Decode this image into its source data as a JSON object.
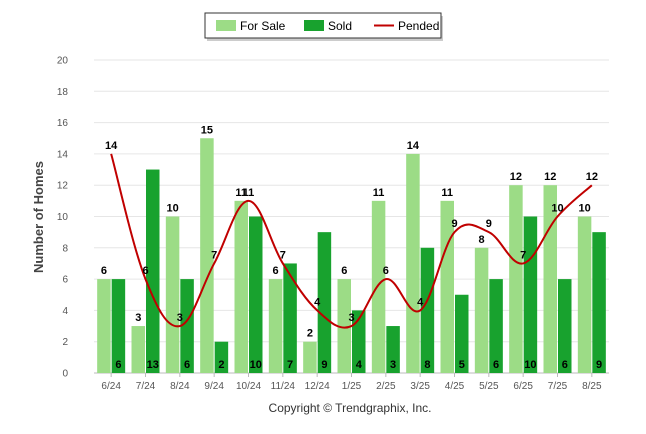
{
  "chart_data": {
    "type": "bar",
    "categories": [
      "6/24",
      "7/24",
      "8/24",
      "9/24",
      "10/24",
      "11/24",
      "12/24",
      "1/25",
      "2/25",
      "3/25",
      "4/25",
      "5/25",
      "6/25",
      "7/25",
      "8/25"
    ],
    "series": [
      {
        "name": "For Sale",
        "type": "bar",
        "color": "#9cdc86",
        "values": [
          6,
          3,
          10,
          15,
          11,
          6,
          2,
          6,
          11,
          14,
          11,
          8,
          12,
          12,
          10
        ]
      },
      {
        "name": "Sold",
        "type": "bar",
        "color": "#18a22e",
        "values": [
          6,
          13,
          6,
          2,
          10,
          7,
          9,
          4,
          3,
          8,
          5,
          6,
          10,
          6,
          9
        ]
      },
      {
        "name": "Pended",
        "type": "line",
        "color": "#c00000",
        "values": [
          14,
          6,
          3,
          7,
          11,
          7,
          4,
          3,
          6,
          4,
          9,
          9,
          7,
          10,
          12
        ]
      }
    ],
    "ylabel": "Number of Homes",
    "xlabel": "",
    "ylim": [
      0,
      20
    ],
    "yticks": [
      0,
      2,
      4,
      6,
      8,
      10,
      12,
      14,
      16,
      18,
      20
    ],
    "grid": true,
    "legend_position": "top-center"
  },
  "credit": "Copyright © Trendgraphix, Inc."
}
